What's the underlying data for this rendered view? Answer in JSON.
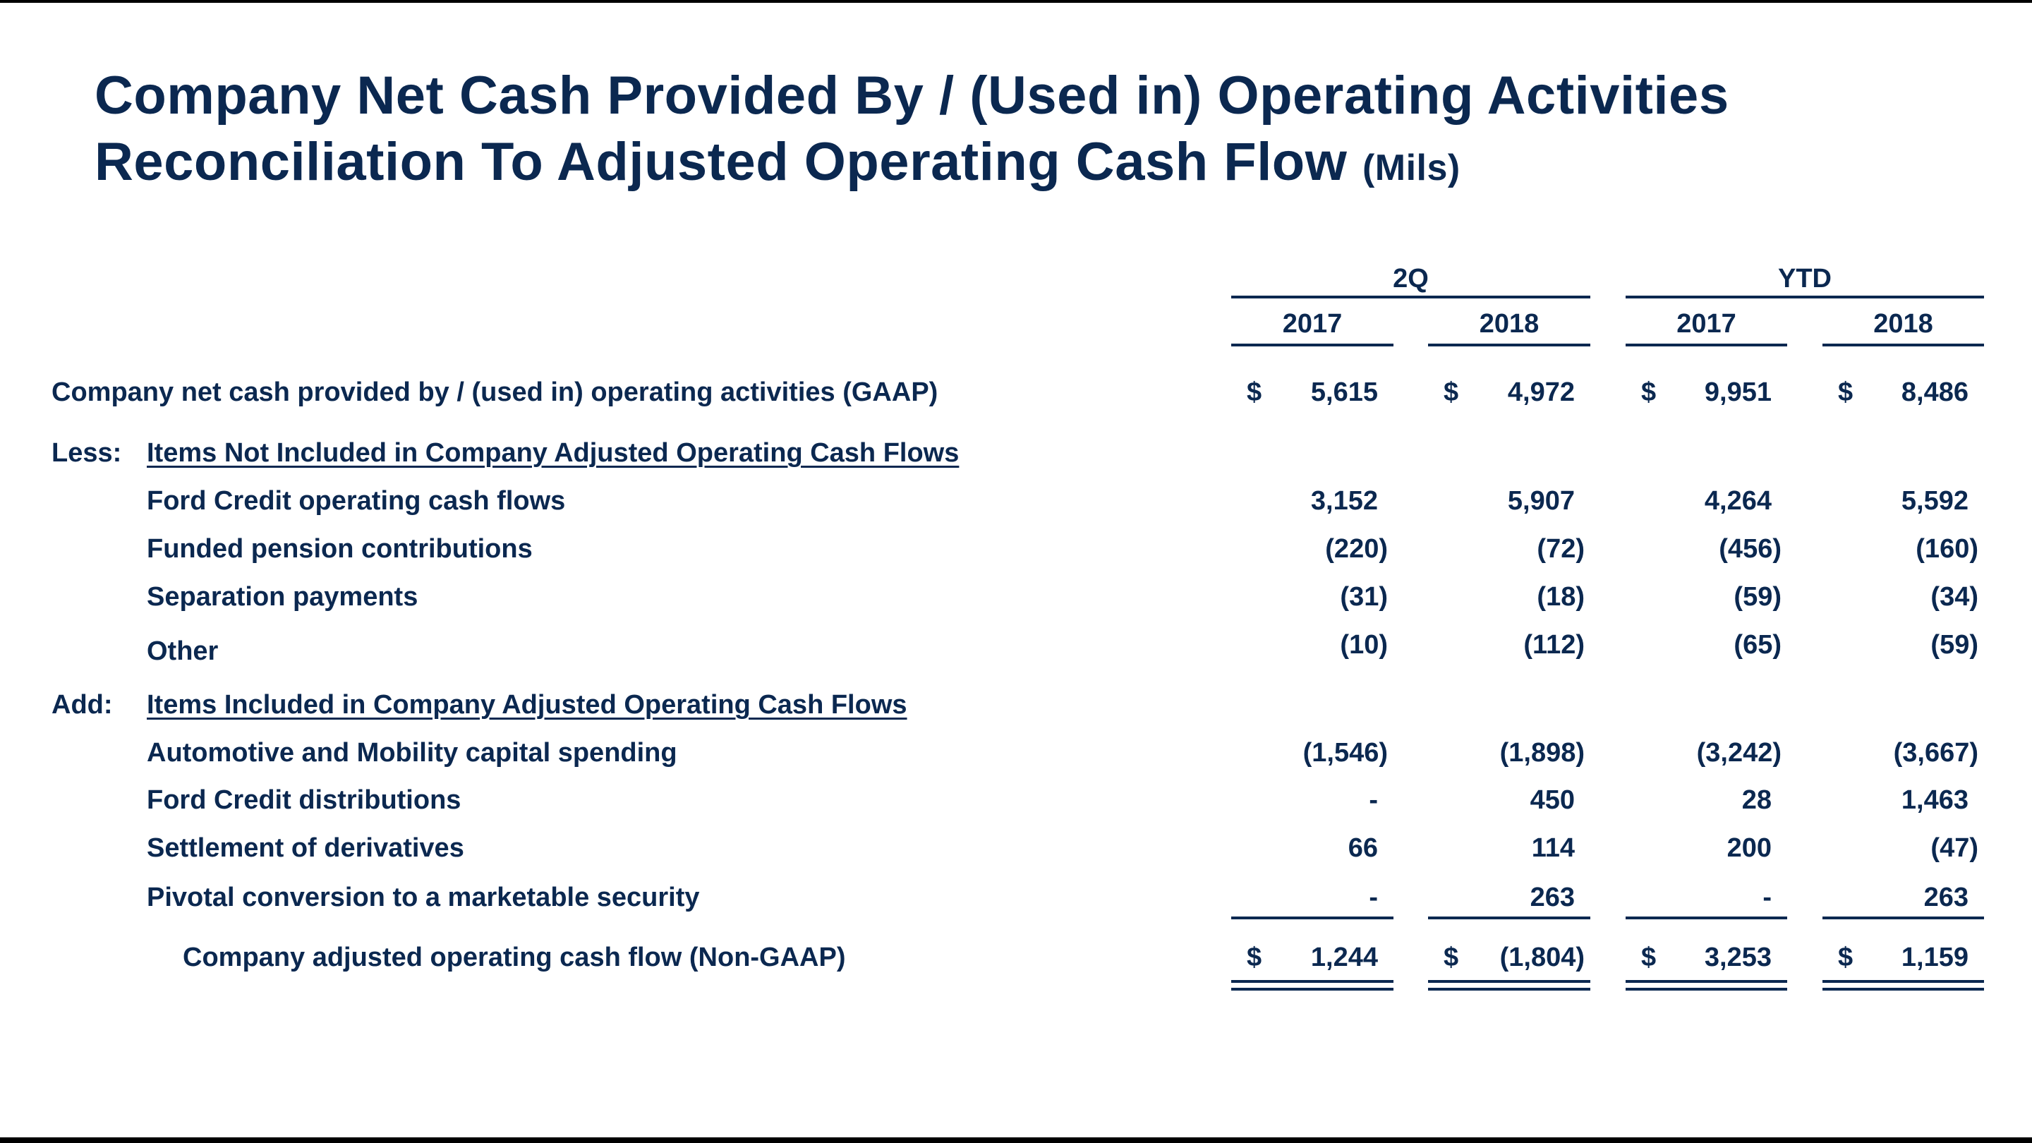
{
  "title": {
    "line1": "Company Net Cash Provided By / (Used in) Operating Activities",
    "line2": "Reconciliation To Adjusted Operating Cash Flow",
    "units": "(Mils)"
  },
  "columns": {
    "groups": [
      "2Q",
      "YTD"
    ],
    "years": [
      "2017",
      "2018",
      "2017",
      "2018"
    ]
  },
  "gaap_row": {
    "label": "Company net cash provided by / (used in) operating activities (GAAP)",
    "currency": "$",
    "values": [
      "5,615",
      "4,972",
      "9,951",
      "8,486"
    ]
  },
  "less_section": {
    "prefix": "Less:",
    "heading": "Items Not Included in Company Adjusted Operating Cash Flows",
    "items": [
      {
        "label": "Ford Credit operating cash flows",
        "values": [
          "3,152",
          "5,907",
          "4,264",
          "5,592"
        ]
      },
      {
        "label": "Funded pension contributions",
        "values": [
          "(220)",
          "(72)",
          "(456)",
          "(160)"
        ]
      },
      {
        "label": "Separation payments",
        "values": [
          "(31)",
          "(18)",
          "(59)",
          "(34)"
        ]
      },
      {
        "label": "Other",
        "values": [
          "(10)",
          "(112)",
          "(65)",
          "(59)"
        ]
      }
    ]
  },
  "add_section": {
    "prefix": "Add:",
    "heading": "Items Included in Company Adjusted Operating Cash Flows",
    "items": [
      {
        "label": "Automotive and Mobility capital spending",
        "values": [
          "(1,546)",
          "(1,898)",
          "(3,242)",
          "(3,667)"
        ]
      },
      {
        "label": "Ford Credit distributions",
        "values": [
          "-",
          "450",
          "28",
          "1,463"
        ]
      },
      {
        "label": "Settlement of derivatives",
        "values": [
          "66",
          "114",
          "200",
          "(47)"
        ]
      },
      {
        "label": "Pivotal conversion to a marketable security",
        "values": [
          "-",
          "263",
          "-",
          "263"
        ]
      }
    ]
  },
  "total_row": {
    "label": "Company adjusted operating cash flow (Non-GAAP)",
    "currency": "$",
    "values": [
      "1,244",
      "(1,804)",
      "3,253",
      "1,159"
    ]
  },
  "colors": {
    "text": "#0b2850"
  }
}
